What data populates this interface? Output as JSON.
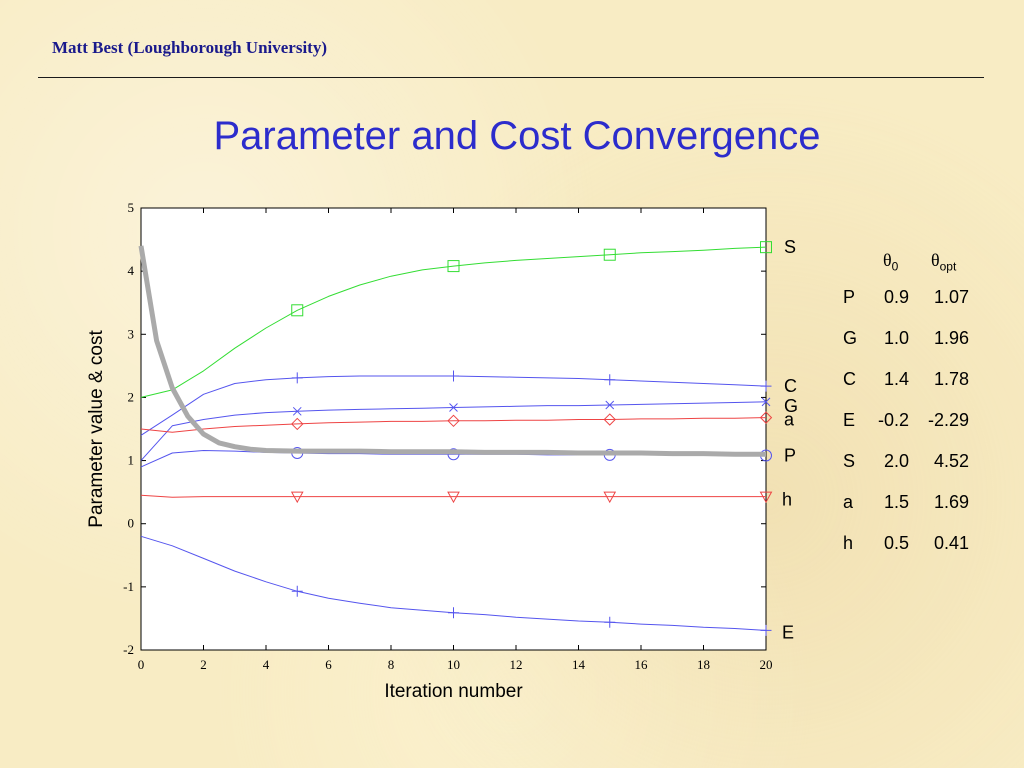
{
  "slide": {
    "header": "Matt Best (Loughborough University)",
    "title": "Parameter and Cost Convergence"
  },
  "chart_data": {
    "type": "line",
    "xlabel": "Iteration number",
    "ylabel": "Parameter value & cost",
    "xlim": [
      0,
      20
    ],
    "ylim": [
      -2,
      5
    ],
    "x_ticks": [
      0,
      2,
      4,
      6,
      8,
      10,
      12,
      14,
      16,
      18,
      20
    ],
    "y_ticks": [
      -2,
      -1,
      0,
      1,
      2,
      3,
      4,
      5
    ],
    "grid": false,
    "series": [
      {
        "name": "S",
        "color": "#33dd33",
        "marker": "square",
        "marker_x": [
          5,
          10,
          15,
          20
        ],
        "x": [
          0,
          1,
          2,
          3,
          4,
          5,
          6,
          7,
          8,
          9,
          10,
          11,
          12,
          13,
          14,
          15,
          16,
          17,
          18,
          19,
          20
        ],
        "y": [
          2.0,
          2.12,
          2.42,
          2.78,
          3.1,
          3.38,
          3.6,
          3.78,
          3.92,
          4.02,
          4.08,
          4.13,
          4.17,
          4.2,
          4.23,
          4.26,
          4.29,
          4.31,
          4.33,
          4.36,
          4.38
        ]
      },
      {
        "name": "C",
        "color": "#5555ee",
        "marker": "plus",
        "marker_x": [
          5,
          10,
          15,
          20
        ],
        "x": [
          0,
          1,
          2,
          3,
          4,
          5,
          6,
          7,
          8,
          9,
          10,
          11,
          12,
          13,
          14,
          15,
          16,
          17,
          18,
          19,
          20
        ],
        "y": [
          1.4,
          1.72,
          2.05,
          2.22,
          2.28,
          2.31,
          2.33,
          2.34,
          2.34,
          2.34,
          2.34,
          2.33,
          2.32,
          2.31,
          2.3,
          2.28,
          2.26,
          2.24,
          2.22,
          2.2,
          2.18
        ]
      },
      {
        "name": "G",
        "color": "#5555ee",
        "marker": "x",
        "marker_x": [
          5,
          10,
          15,
          20
        ],
        "x": [
          0,
          1,
          2,
          3,
          4,
          5,
          6,
          7,
          8,
          9,
          10,
          11,
          12,
          13,
          14,
          15,
          16,
          17,
          18,
          19,
          20
        ],
        "y": [
          1.0,
          1.55,
          1.65,
          1.72,
          1.76,
          1.78,
          1.8,
          1.81,
          1.82,
          1.83,
          1.84,
          1.85,
          1.86,
          1.87,
          1.87,
          1.88,
          1.89,
          1.9,
          1.91,
          1.92,
          1.93
        ]
      },
      {
        "name": "a",
        "color": "#ee4444",
        "marker": "diamond",
        "marker_x": [
          5,
          10,
          15,
          20
        ],
        "x": [
          0,
          1,
          2,
          3,
          4,
          5,
          6,
          7,
          8,
          9,
          10,
          11,
          12,
          13,
          14,
          15,
          16,
          17,
          18,
          19,
          20
        ],
        "y": [
          1.5,
          1.45,
          1.5,
          1.54,
          1.56,
          1.58,
          1.6,
          1.61,
          1.62,
          1.62,
          1.63,
          1.63,
          1.64,
          1.64,
          1.65,
          1.65,
          1.66,
          1.66,
          1.67,
          1.67,
          1.68
        ]
      },
      {
        "name": "P",
        "color": "#5555ee",
        "marker": "circle",
        "marker_x": [
          5,
          10,
          15,
          20
        ],
        "x": [
          0,
          1,
          2,
          3,
          4,
          5,
          6,
          7,
          8,
          9,
          10,
          11,
          12,
          13,
          14,
          15,
          16,
          17,
          18,
          19,
          20
        ],
        "y": [
          0.9,
          1.12,
          1.16,
          1.15,
          1.13,
          1.12,
          1.11,
          1.11,
          1.1,
          1.1,
          1.1,
          1.1,
          1.1,
          1.09,
          1.09,
          1.09,
          1.09,
          1.09,
          1.09,
          1.08,
          1.08
        ]
      },
      {
        "name": "h",
        "color": "#ee4444",
        "marker": "triangle-down",
        "marker_x": [
          5,
          10,
          15,
          20
        ],
        "x": [
          0,
          1,
          2,
          3,
          4,
          5,
          6,
          7,
          8,
          9,
          10,
          11,
          12,
          13,
          14,
          15,
          16,
          17,
          18,
          19,
          20
        ],
        "y": [
          0.45,
          0.42,
          0.43,
          0.43,
          0.43,
          0.43,
          0.43,
          0.43,
          0.43,
          0.43,
          0.43,
          0.43,
          0.43,
          0.43,
          0.43,
          0.43,
          0.43,
          0.43,
          0.43,
          0.43,
          0.43
        ]
      },
      {
        "name": "E",
        "color": "#5555ee",
        "marker": "plus",
        "marker_x": [
          5,
          10,
          15,
          20
        ],
        "x": [
          0,
          1,
          2,
          3,
          4,
          5,
          6,
          7,
          8,
          9,
          10,
          11,
          12,
          13,
          14,
          15,
          16,
          17,
          18,
          19,
          20
        ],
        "y": [
          -0.2,
          -0.35,
          -0.55,
          -0.75,
          -0.92,
          -1.07,
          -1.18,
          -1.26,
          -1.33,
          -1.37,
          -1.41,
          -1.44,
          -1.48,
          -1.51,
          -1.54,
          -1.56,
          -1.59,
          -1.61,
          -1.64,
          -1.66,
          -1.69
        ]
      },
      {
        "name": "",
        "role": "cost",
        "color": "#aaaaaa",
        "marker": "none",
        "marker_x": [],
        "x": [
          0,
          0.5,
          1,
          1.5,
          2,
          2.5,
          3,
          3.5,
          4,
          5,
          6,
          7,
          8,
          9,
          10,
          11,
          12,
          13,
          14,
          15,
          16,
          17,
          18,
          19,
          20
        ],
        "y": [
          4.4,
          2.9,
          2.15,
          1.7,
          1.42,
          1.28,
          1.22,
          1.18,
          1.16,
          1.15,
          1.15,
          1.15,
          1.14,
          1.14,
          1.14,
          1.13,
          1.13,
          1.13,
          1.12,
          1.12,
          1.12,
          1.11,
          1.11,
          1.1,
          1.1
        ]
      }
    ]
  },
  "param_table": {
    "header": [
      "θ",
      "0",
      "θ",
      "opt"
    ],
    "rows": [
      {
        "p": "P",
        "v0": "0.9",
        "vopt": "1.07"
      },
      {
        "p": "G",
        "v0": "1.0",
        "vopt": "1.96"
      },
      {
        "p": "C",
        "v0": "1.4",
        "vopt": "1.78"
      },
      {
        "p": "E",
        "v0": "-0.2",
        "vopt": "-2.29"
      },
      {
        "p": "S",
        "v0": "2.0",
        "vopt": "4.52"
      },
      {
        "p": "a",
        "v0": "1.5",
        "vopt": "1.69"
      },
      {
        "p": "h",
        "v0": "0.5",
        "vopt": "0.41"
      }
    ]
  }
}
